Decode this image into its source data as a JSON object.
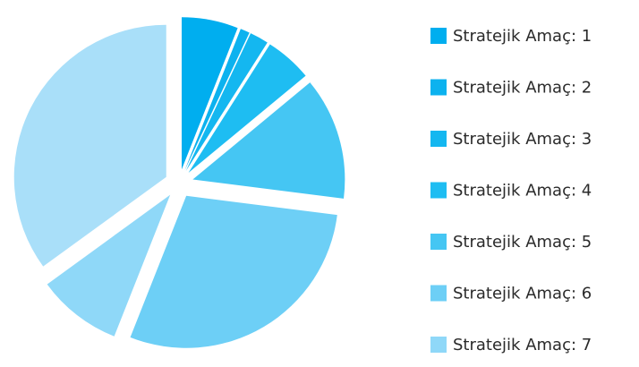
{
  "chart_data": {
    "type": "pie",
    "categories": [
      "Stratejik Amaç: 1",
      "Stratejik Amaç: 2",
      "Stratejik Amaç: 3",
      "Stratejik Amaç: 4",
      "Stratejik Amaç: 5",
      "Stratejik Amaç: 6",
      "Stratejik Amaç: 7",
      null
    ],
    "values": [
      6,
      1,
      2,
      5,
      13,
      29,
      9,
      35
    ],
    "colors": [
      "#00aeef",
      "#0cb2ef",
      "#14b7f0",
      "#1ebdf2",
      "#45c6f3",
      "#6dcff6",
      "#8fd8f8",
      "#a9dff9"
    ],
    "legend": "right"
  }
}
